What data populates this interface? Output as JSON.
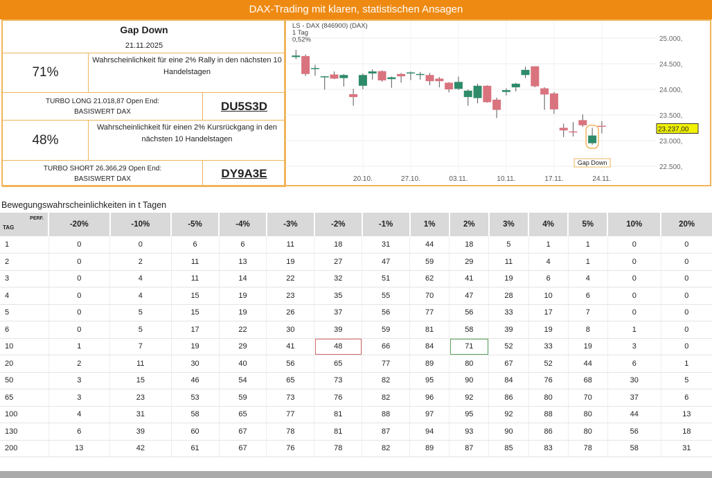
{
  "header": {
    "title": "DAX-Trading mit klaren, statistischen Ansagen"
  },
  "signal": {
    "title": "Gap Down",
    "date": "21.11.2025",
    "long": {
      "pct": "71%",
      "desc": "Wahrscheinlichkeit für eine 2% Rally in den nächsten 10 Handelstagen",
      "turbo": "TURBO LONG 21.018,87 Open End: BASISWERT DAX",
      "code": "DU5S3D"
    },
    "short": {
      "pct": "48%",
      "desc": "Wahrscheinlichkeit für einen 2% Kursrückgang in den nächsten 10 Handelstagen",
      "turbo": "TURBO SHORT 26.366,29 Open End: BASISWERT DAX",
      "code": "DY9A3E"
    }
  },
  "chart": {
    "title": "LS - DAX (846900) (DAX)",
    "interval": "1 Tag",
    "change": "0,52%",
    "last_price": "23.237,00",
    "annotation": "Gap Down",
    "y_ticks": [
      "25.000,",
      "24.500,",
      "24.000,",
      "23.500,",
      "23.000,",
      "22.500,"
    ],
    "y_values": [
      25000,
      24500,
      24000,
      23500,
      23000,
      22500
    ],
    "x_ticks": [
      "20.10.",
      "27.10.",
      "03.11.",
      "10.11.",
      "17.11.",
      "24.11."
    ],
    "x_tick_candle_index": [
      7,
      12,
      17,
      22,
      27,
      32
    ],
    "colors": {
      "up": "#2e8b6a",
      "down": "#d9737e"
    },
    "candles": [
      [
        24630,
        24660,
        24770,
        24590
      ],
      [
        24650,
        24300,
        24680,
        24260
      ],
      [
        24415,
        24415,
        24480,
        24265
      ],
      [
        24255,
        24255,
        24260,
        23995
      ],
      [
        24290,
        24210,
        24350,
        24200
      ],
      [
        24220,
        24280,
        24300,
        24055
      ],
      [
        23905,
        23850,
        24010,
        23680
      ],
      [
        24070,
        24280,
        24310,
        24000
      ],
      [
        24310,
        24350,
        24390,
        24190
      ],
      [
        24355,
        24175,
        24370,
        24150
      ],
      [
        24200,
        24235,
        24250,
        24030
      ],
      [
        24300,
        24255,
        24320,
        24130
      ],
      [
        24330,
        24330,
        24350,
        24180
      ],
      [
        24300,
        24300,
        24340,
        24190
      ],
      [
        24280,
        24160,
        24320,
        24080
      ],
      [
        24210,
        24160,
        24240,
        24040
      ],
      [
        24130,
        24000,
        24140,
        23940
      ],
      [
        24010,
        24145,
        24250,
        23990
      ],
      [
        23850,
        23975,
        24000,
        23680
      ],
      [
        23830,
        24070,
        24110,
        23730
      ],
      [
        24070,
        23750,
        24080,
        23740
      ],
      [
        23800,
        23600,
        23840,
        23440
      ],
      [
        23950,
        23985,
        24020,
        23880
      ],
      [
        24040,
        24110,
        24130,
        23960
      ],
      [
        24280,
        24380,
        24440,
        24220
      ],
      [
        24450,
        24060,
        24450,
        24040
      ],
      [
        24020,
        23900,
        24040,
        23600
      ],
      [
        23920,
        23610,
        23950,
        23520
      ],
      [
        23250,
        23200,
        23330,
        23070
      ],
      [
        23180,
        23165,
        23360,
        23080
      ],
      [
        23400,
        23300,
        23510,
        23270
      ],
      [
        22950,
        23100,
        23250,
        22920
      ],
      [
        23290,
        23280,
        23380,
        23140
      ]
    ]
  },
  "table": {
    "title": "Bewegungswahrscheinlichkeiten in t Tagen",
    "corner_tag": "TAG",
    "corner_perf": "PERF.",
    "columns": [
      "-20%",
      "-10%",
      "-5%",
      "-4%",
      "-3%",
      "-2%",
      "-1%",
      "1%",
      "2%",
      "3%",
      "4%",
      "5%",
      "10%",
      "20%"
    ],
    "rows": [
      {
        "tag": "1",
        "values": [
          "0",
          "0",
          "6",
          "6",
          "11",
          "18",
          "31",
          "44",
          "18",
          "5",
          "1",
          "1",
          "0",
          "0"
        ]
      },
      {
        "tag": "2",
        "values": [
          "0",
          "2",
          "11",
          "13",
          "19",
          "27",
          "47",
          "59",
          "29",
          "11",
          "4",
          "1",
          "0",
          "0"
        ]
      },
      {
        "tag": "3",
        "values": [
          "0",
          "4",
          "11",
          "14",
          "22",
          "32",
          "51",
          "62",
          "41",
          "19",
          "6",
          "4",
          "0",
          "0"
        ]
      },
      {
        "tag": "4",
        "values": [
          "0",
          "4",
          "15",
          "19",
          "23",
          "35",
          "55",
          "70",
          "47",
          "28",
          "10",
          "6",
          "0",
          "0"
        ]
      },
      {
        "tag": "5",
        "values": [
          "0",
          "5",
          "15",
          "19",
          "26",
          "37",
          "56",
          "77",
          "56",
          "33",
          "17",
          "7",
          "0",
          "0"
        ]
      },
      {
        "tag": "6",
        "values": [
          "0",
          "5",
          "17",
          "22",
          "30",
          "39",
          "59",
          "81",
          "58",
          "39",
          "19",
          "8",
          "1",
          "0"
        ]
      },
      {
        "tag": "10",
        "values": [
          "1",
          "7",
          "19",
          "29",
          "41",
          "48",
          "66",
          "84",
          "71",
          "52",
          "33",
          "19",
          "3",
          "0"
        ],
        "highlight": {
          "5": "red",
          "8": "green"
        }
      },
      {
        "tag": "20",
        "values": [
          "2",
          "11",
          "30",
          "40",
          "56",
          "65",
          "77",
          "89",
          "80",
          "67",
          "52",
          "44",
          "6",
          "1"
        ]
      },
      {
        "tag": "50",
        "values": [
          "3",
          "15",
          "46",
          "54",
          "65",
          "73",
          "82",
          "95",
          "90",
          "84",
          "76",
          "68",
          "30",
          "5"
        ]
      },
      {
        "tag": "65",
        "values": [
          "3",
          "23",
          "53",
          "59",
          "73",
          "76",
          "82",
          "96",
          "92",
          "86",
          "80",
          "70",
          "37",
          "6"
        ]
      },
      {
        "tag": "100",
        "values": [
          "4",
          "31",
          "58",
          "65",
          "77",
          "81",
          "88",
          "97",
          "95",
          "92",
          "88",
          "80",
          "44",
          "13"
        ]
      },
      {
        "tag": "130",
        "values": [
          "6",
          "39",
          "60",
          "67",
          "78",
          "81",
          "87",
          "94",
          "93",
          "90",
          "86",
          "80",
          "56",
          "18"
        ]
      },
      {
        "tag": "200",
        "values": [
          "13",
          "42",
          "61",
          "67",
          "76",
          "78",
          "82",
          "89",
          "87",
          "85",
          "83",
          "78",
          "58",
          "31"
        ]
      }
    ]
  }
}
